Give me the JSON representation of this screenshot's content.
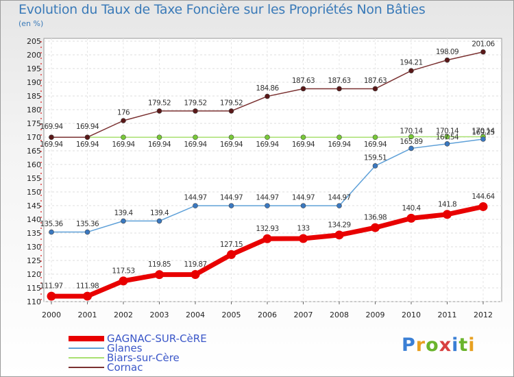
{
  "title": "Evolution du Taux de Taxe Foncière sur les Propriétés Non Bâties",
  "unit": "(en %)",
  "brand": {
    "letters": [
      "P",
      "r",
      "o",
      "x",
      "i",
      "t",
      "i"
    ],
    "colors": [
      "#3a7fd5",
      "#e8a020",
      "#6ab42c",
      "#d84040",
      "#3a7fd5",
      "#6ab42c",
      "#e8a020"
    ]
  },
  "chart_data": {
    "type": "line",
    "title": "Evolution du Taux de Taxe Foncière sur les Propriétés Non Bâties",
    "ylabel": "(en %)",
    "xlabel": "",
    "ylim": [
      110,
      205
    ],
    "ytick_step": 5,
    "x": [
      "2000",
      "2001",
      "2002",
      "2003",
      "2004",
      "2005",
      "2006",
      "2007",
      "2008",
      "2009",
      "2010",
      "2011",
      "2012"
    ],
    "series": [
      {
        "name": "GAGNAC-SUR-CèRE",
        "color": "#e80000",
        "marker_color": "#e80000",
        "width": 7,
        "marker": 6.5,
        "labels_above": true,
        "values": [
          111.97,
          111.98,
          117.53,
          119.85,
          119.87,
          127.15,
          132.93,
          133,
          134.29,
          136.98,
          140.4,
          141.8,
          144.64
        ],
        "labels": [
          "111.97",
          "111.98",
          "117.53",
          "119.85",
          "119.87",
          "127.15",
          "132.93",
          "133",
          "134.29",
          "136.98",
          "140.4",
          "141.8",
          "144.64"
        ]
      },
      {
        "name": "Glanes",
        "color": "#5ea0d8",
        "marker_color": "#3a78c0",
        "width": 1.5,
        "marker": 3.5,
        "labels_above": true,
        "values": [
          135.36,
          135.36,
          139.4,
          139.4,
          144.97,
          144.97,
          144.97,
          144.97,
          144.97,
          159.51,
          165.89,
          167.54,
          169.25
        ],
        "labels": [
          "135.36",
          "135.36",
          "139.4",
          "139.4",
          "144.97",
          "144.97",
          "144.97",
          "144.97",
          "144.97",
          "159.51",
          "165.89",
          "167.54",
          "169.25"
        ]
      },
      {
        "name": "Biars-sur-Cère",
        "color": "#a8e070",
        "marker_color": "#78c838",
        "width": 1.5,
        "marker": 3.5,
        "labels_above": false,
        "values": [
          169.94,
          169.94,
          169.94,
          169.94,
          169.94,
          169.94,
          169.94,
          169.94,
          169.94,
          169.94,
          170.14,
          170.14,
          170.14
        ],
        "labels": [
          "169.94",
          "169.94",
          "169.94",
          "169.94",
          "169.94",
          "169.94",
          "169.94",
          "169.94",
          "169.94",
          "169.94",
          "170.14",
          "170.14",
          "170.14"
        ]
      },
      {
        "name": "Cornac",
        "color": "#7a3030",
        "marker_color": "#5a1818",
        "width": 1.5,
        "marker": 3.5,
        "labels_above": true,
        "values": [
          169.94,
          169.94,
          176,
          179.52,
          179.52,
          179.52,
          184.86,
          187.63,
          187.63,
          187.63,
          194.21,
          198.09,
          201.06
        ],
        "labels": [
          "169.94",
          "169.94",
          "176",
          "179.52",
          "179.52",
          "179.52",
          "184.86",
          "187.63",
          "187.63",
          "187.63",
          "194.21",
          "198.09",
          "201.06"
        ]
      }
    ]
  }
}
